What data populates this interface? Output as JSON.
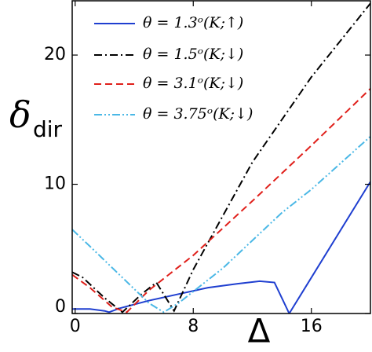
{
  "chart_data": {
    "type": "line",
    "xlabel": "Δ",
    "ylabel": "δ",
    "ylabel_subscript": "dir",
    "xlim": [
      -0.2,
      20
    ],
    "ylim": [
      0,
      24.2
    ],
    "xticks": [
      0,
      8,
      16
    ],
    "yticks": [
      0,
      10,
      20
    ],
    "legend": "upper left",
    "series": [
      {
        "name": "θ = 1.3ᵒ(K;↑)",
        "color": "#1f3fd0",
        "dash": "solid",
        "x": [
          -0.2,
          1,
          2,
          2.3,
          3,
          5,
          7,
          9,
          11,
          12.5,
          13.5,
          14.5,
          20
        ],
        "values": [
          0.35,
          0.35,
          0.2,
          0.1,
          0.4,
          1.0,
          1.5,
          2.0,
          2.3,
          2.5,
          2.4,
          0,
          10.2
        ]
      },
      {
        "name": "θ = 1.5ᵒ(K;↓)",
        "color": "#000000",
        "dash": "dashdot",
        "x": [
          -0.2,
          0.5,
          2,
          3.2,
          4.5,
          5.5,
          6.7,
          8,
          12,
          16,
          20
        ],
        "values": [
          3.2,
          2.8,
          1.2,
          0.1,
          1.5,
          2.4,
          0.2,
          3.4,
          11.7,
          18.3,
          24
        ]
      },
      {
        "name": "θ = 3.1ᵒ(K;↓)",
        "color": "#e0201b",
        "dash": "dashed",
        "x": [
          -0.2,
          1,
          2.5,
          3.5,
          5,
          8,
          12,
          16,
          20
        ],
        "values": [
          3,
          2,
          0.5,
          0.1,
          1.8,
          4.5,
          8.7,
          13,
          17.4
        ]
      },
      {
        "name": "θ = 3.75ᵒ(K;↓)",
        "color": "#4bb8e6",
        "dash": "dashdotdot",
        "x": [
          -0.2,
          1,
          3,
          5,
          6,
          7,
          10,
          14,
          16,
          20
        ],
        "values": [
          6.5,
          5.2,
          3,
          0.8,
          0.1,
          0.8,
          3.5,
          7.8,
          9.6,
          13.7
        ]
      }
    ]
  }
}
